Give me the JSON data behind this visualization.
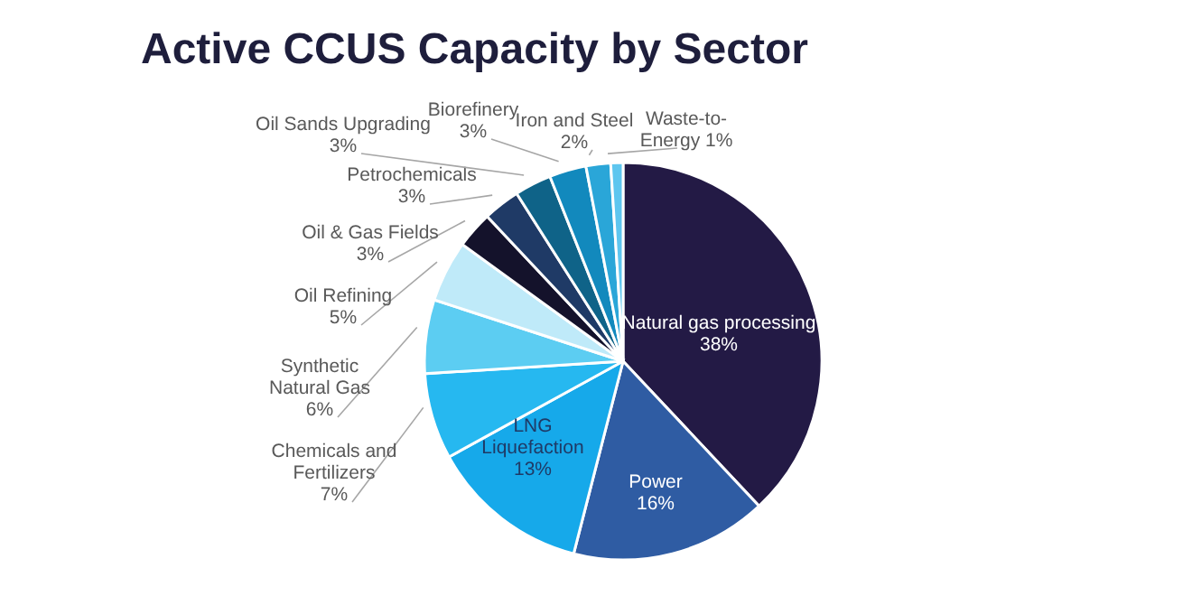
{
  "chart_data": {
    "type": "pie",
    "title": "Active CCUS Capacity by Sector",
    "categories": [
      "Natural gas processing",
      "Power",
      "LNG Liquefaction",
      "Chemicals and Fertilizers",
      "Synthetic Natural Gas",
      "Oil Refining",
      "Oil & Gas Fields",
      "Petrochemicals",
      "Oil Sands Upgrading",
      "Biorefinery",
      "Iron and Steel",
      "Waste-to-Energy"
    ],
    "values": [
      38,
      16,
      13,
      7,
      6,
      5,
      3,
      3,
      3,
      3,
      2,
      1
    ],
    "value_labels": [
      "38%",
      "16%",
      "13%",
      "7%",
      "6%",
      "5%",
      "3%",
      "3%",
      "3%",
      "3%",
      "2%",
      "1%"
    ],
    "colors": [
      "#231a45",
      "#2f5ca3",
      "#16a9ea",
      "#26b8f0",
      "#5ccdf2",
      "#bfeaf9",
      "#14122b",
      "#1f3a66",
      "#0f6388",
      "#1289bd",
      "#2aa6d8",
      "#5ec6ef"
    ],
    "legend": false
  }
}
